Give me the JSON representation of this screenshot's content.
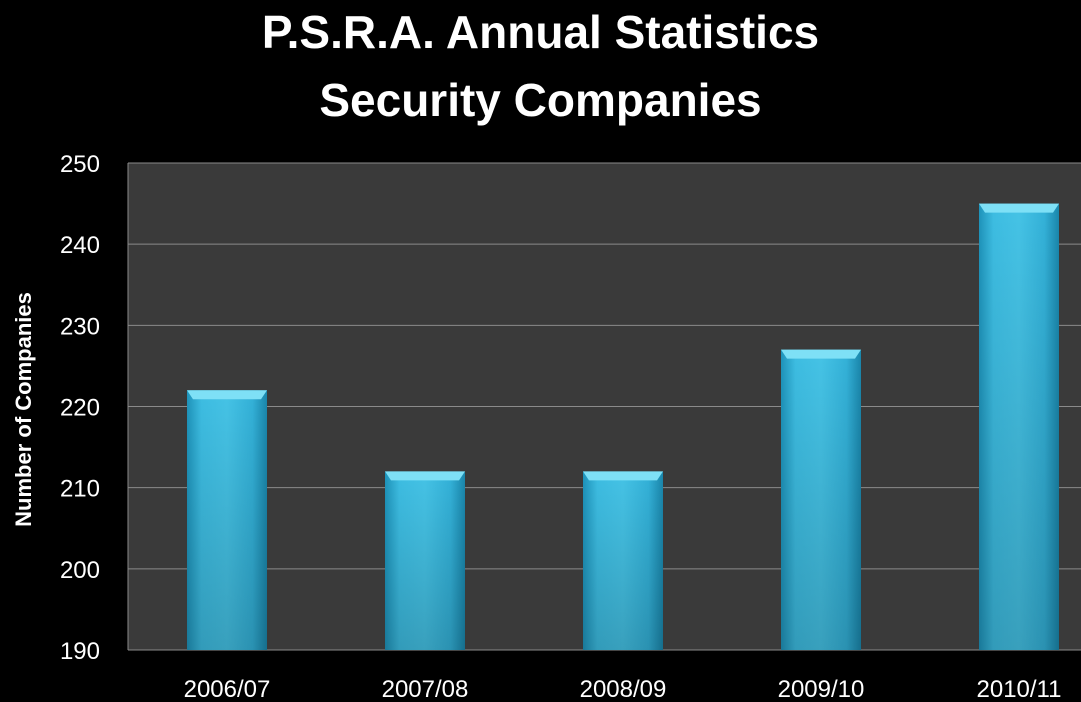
{
  "chart_data": {
    "type": "bar",
    "title": [
      "P.S.R.A. Annual Statistics",
      "Security Companies"
    ],
    "xlabel": "",
    "ylabel": "Number of Companies",
    "categories": [
      "2006/07",
      "2007/08",
      "2008/09",
      "2009/10",
      "2010/11"
    ],
    "values": [
      222,
      212,
      212,
      227,
      245
    ],
    "ylim": [
      190,
      250
    ],
    "yticks": [
      190,
      200,
      210,
      220,
      230,
      240,
      250
    ],
    "grid": true,
    "legend": "none",
    "colors": {
      "background": "#000000",
      "plot_area": "#3a3a3a",
      "grid": "#8a8a8a",
      "bar_light": "#4fc8e8",
      "bar_mid": "#2fb0d6",
      "bar_dark": "#1d8fb4",
      "bar_top": "#7ee0f6",
      "text": "#ffffff"
    }
  }
}
